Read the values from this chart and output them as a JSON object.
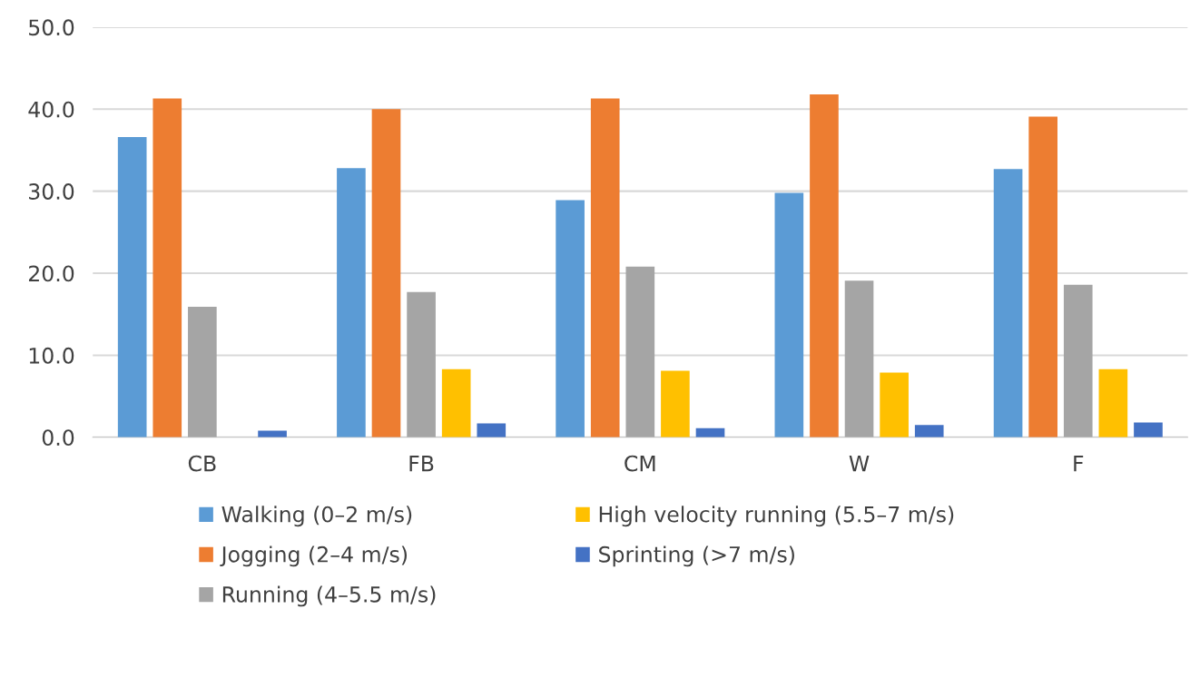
{
  "chart_data": {
    "type": "bar",
    "categories": [
      "CB",
      "FB",
      "CM",
      "W",
      "F"
    ],
    "series": [
      {
        "name": "Walking (0–2 m/s)",
        "color": "#5b9bd5",
        "values": [
          36.6,
          32.8,
          28.9,
          29.8,
          32.7
        ]
      },
      {
        "name": "Jogging (2–4 m/s)",
        "color": "#ed7d31",
        "values": [
          41.3,
          40.0,
          41.3,
          41.8,
          39.1
        ]
      },
      {
        "name": "Running (4–5.5 m/s)",
        "color": "#a5a5a5",
        "values": [
          15.9,
          17.7,
          20.8,
          19.1,
          18.6
        ]
      },
      {
        "name": "High velocity running (5.5–7 m/s)",
        "color": "#ffc000",
        "values": [
          null,
          8.3,
          8.1,
          7.9,
          8.3
        ]
      },
      {
        "name": "Sprinting (>7 m/s)",
        "color": "#4472c4",
        "values": [
          0.8,
          1.7,
          1.1,
          1.5,
          1.8
        ]
      }
    ],
    "ylim": [
      0,
      50
    ],
    "yticks": [
      {
        "value": 0,
        "label": "0.0"
      },
      {
        "value": 10,
        "label": "10.0"
      },
      {
        "value": 20,
        "label": "20.0"
      },
      {
        "value": 30,
        "label": "30.0"
      },
      {
        "value": 40,
        "label": "40.0"
      },
      {
        "value": 50,
        "label": "50.0"
      }
    ],
    "grid": "y",
    "legend": "bottom"
  }
}
